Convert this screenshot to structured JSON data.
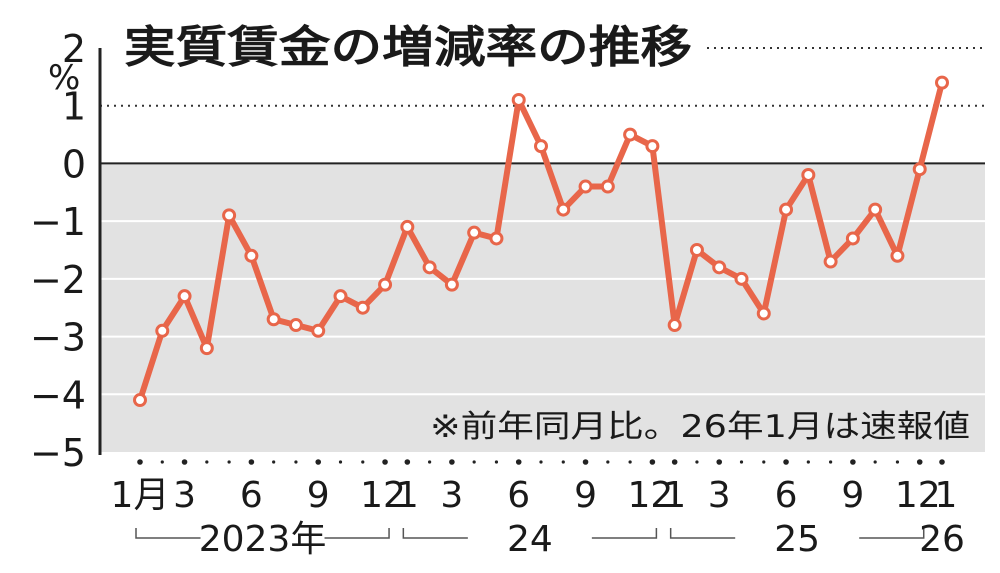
{
  "chart_data": {
    "type": "line",
    "title": "実質賃金の増減率の推移",
    "unit": "%",
    "note": "※前年同月比。26年1月は速報値",
    "ylim": [
      -5,
      2
    ],
    "yticks": [
      "2",
      "1",
      "0",
      "-1",
      "-2",
      "-3",
      "-4",
      "-5"
    ],
    "negative_region_fill": "#e2e2e2",
    "line_color": "#e8664a",
    "months": [
      "2023-01",
      "2023-02",
      "2023-03",
      "2023-04",
      "2023-05",
      "2023-06",
      "2023-07",
      "2023-08",
      "2023-09",
      "2023-10",
      "2023-11",
      "2023-12",
      "2024-01",
      "2024-02",
      "2024-03",
      "2024-04",
      "2024-05",
      "2024-06",
      "2024-07",
      "2024-08",
      "2024-09",
      "2024-10",
      "2024-11",
      "2024-12",
      "2025-01",
      "2025-02",
      "2025-03",
      "2025-04",
      "2025-05",
      "2025-06",
      "2025-07",
      "2025-08",
      "2025-09",
      "2025-10",
      "2025-11",
      "2025-12",
      "2026-01"
    ],
    "values": [
      -4.1,
      -2.9,
      -2.3,
      -3.2,
      -0.9,
      -1.6,
      -2.7,
      -2.8,
      -2.9,
      -2.3,
      -2.5,
      -2.1,
      -1.1,
      -1.8,
      -2.1,
      -1.2,
      -1.3,
      1.1,
      0.3,
      -0.8,
      -0.4,
      -0.4,
      0.5,
      0.3,
      -2.8,
      -1.5,
      -1.8,
      -2.0,
      -2.6,
      -0.8,
      -0.2,
      -1.7,
      -1.3,
      -0.8,
      -1.6,
      -0.1,
      1.4
    ],
    "xtick_labels": [
      {
        "index": 0,
        "label": "1月"
      },
      {
        "index": 2,
        "label": "3"
      },
      {
        "index": 5,
        "label": "6"
      },
      {
        "index": 8,
        "label": "9"
      },
      {
        "index": 11,
        "label": "12"
      },
      {
        "index": 12,
        "label": "1"
      },
      {
        "index": 14,
        "label": "3"
      },
      {
        "index": 17,
        "label": "6"
      },
      {
        "index": 20,
        "label": "9"
      },
      {
        "index": 23,
        "label": "12"
      },
      {
        "index": 24,
        "label": "1"
      },
      {
        "index": 26,
        "label": "3"
      },
      {
        "index": 29,
        "label": "6"
      },
      {
        "index": 32,
        "label": "9"
      },
      {
        "index": 35,
        "label": "12"
      },
      {
        "index": 36,
        "label": "1"
      }
    ],
    "year_groups": [
      {
        "label": "2023年",
        "start": 0,
        "end": 11
      },
      {
        "label": "24",
        "start": 12,
        "end": 23
      },
      {
        "label": "25",
        "start": 24,
        "end": 35
      },
      {
        "label": "26",
        "start": 36,
        "end": 36
      }
    ]
  }
}
